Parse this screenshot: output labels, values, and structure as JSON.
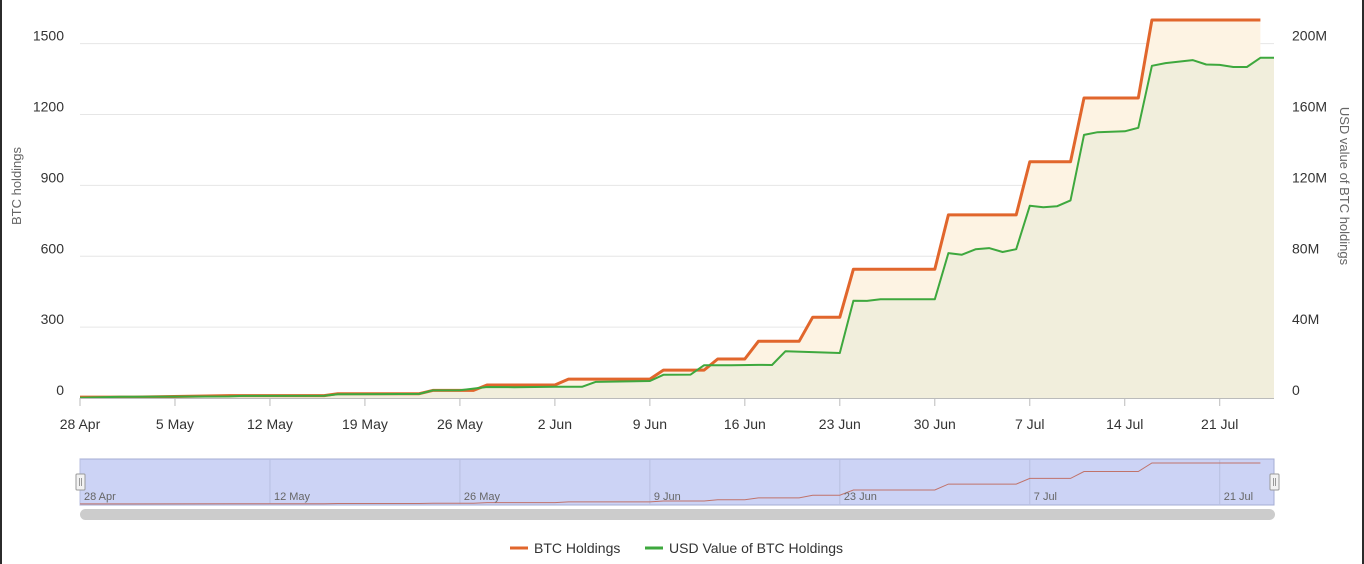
{
  "chart_data": {
    "type": "line",
    "series": [
      {
        "name": "BTC Holdings",
        "axis": "left",
        "color": "#e1662c",
        "fill": "#fdf3e3",
        "points": [
          [
            "2020-04-28",
            4
          ],
          [
            "2020-05-02",
            4
          ],
          [
            "2020-05-09",
            10
          ],
          [
            "2020-05-16",
            10
          ],
          [
            "2020-05-17",
            18
          ],
          [
            "2020-05-23",
            18
          ],
          [
            "2020-05-24",
            32
          ],
          [
            "2020-05-27",
            32
          ],
          [
            "2020-05-28",
            55
          ],
          [
            "2020-06-02",
            55
          ],
          [
            "2020-06-03",
            80
          ],
          [
            "2020-06-09",
            80
          ],
          [
            "2020-06-10",
            118
          ],
          [
            "2020-06-13",
            118
          ],
          [
            "2020-06-14",
            165
          ],
          [
            "2020-06-16",
            165
          ],
          [
            "2020-06-17",
            240
          ],
          [
            "2020-06-20",
            240
          ],
          [
            "2020-06-21",
            342
          ],
          [
            "2020-06-23",
            342
          ],
          [
            "2020-06-24",
            545
          ],
          [
            "2020-06-30",
            545
          ],
          [
            "2020-07-01",
            775
          ],
          [
            "2020-07-06",
            775
          ],
          [
            "2020-07-07",
            1000
          ],
          [
            "2020-07-10",
            1000
          ],
          [
            "2020-07-11",
            1270
          ],
          [
            "2020-07-15",
            1270
          ],
          [
            "2020-07-16",
            1600
          ],
          [
            "2020-07-24",
            1600
          ]
        ]
      },
      {
        "name": "USD Value of BTC Holdings",
        "axis": "right",
        "color": "#3ea83e",
        "fill": "#f1eedc",
        "points": [
          [
            "2020-04-28",
            100000
          ],
          [
            "2020-05-01",
            700000
          ],
          [
            "2020-05-02",
            700000
          ],
          [
            "2020-05-09",
            900000
          ],
          [
            "2020-05-10",
            1200000
          ],
          [
            "2020-05-16",
            1300000
          ],
          [
            "2020-05-17",
            2100000
          ],
          [
            "2020-05-23",
            2300000
          ],
          [
            "2020-05-24",
            4300000
          ],
          [
            "2020-05-26",
            4400000
          ],
          [
            "2020-05-28",
            6200000
          ],
          [
            "2020-05-30",
            6100000
          ],
          [
            "2020-06-02",
            6300000
          ],
          [
            "2020-06-04",
            6300000
          ],
          [
            "2020-06-05",
            9100000
          ],
          [
            "2020-06-09",
            9600000
          ],
          [
            "2020-06-10",
            13100000
          ],
          [
            "2020-06-12",
            13200000
          ],
          [
            "2020-06-13",
            18500000
          ],
          [
            "2020-06-15",
            18500000
          ],
          [
            "2020-06-17",
            18700000
          ],
          [
            "2020-06-18",
            18600000
          ],
          [
            "2020-06-19",
            26400000
          ],
          [
            "2020-06-23",
            25400000
          ],
          [
            "2020-06-24",
            54900000
          ],
          [
            "2020-06-25",
            54800000
          ],
          [
            "2020-06-26",
            55700000
          ],
          [
            "2020-06-30",
            55700000
          ],
          [
            "2020-07-01",
            81800000
          ],
          [
            "2020-07-02",
            80900000
          ],
          [
            "2020-07-03",
            83900000
          ],
          [
            "2020-07-04",
            84600000
          ],
          [
            "2020-07-05",
            82400000
          ],
          [
            "2020-07-06",
            84000000
          ],
          [
            "2020-07-07",
            108500000
          ],
          [
            "2020-07-08",
            107700000
          ],
          [
            "2020-07-09",
            108200000
          ],
          [
            "2020-07-10",
            111500000
          ],
          [
            "2020-07-11",
            148500000
          ],
          [
            "2020-07-12",
            150000000
          ],
          [
            "2020-07-14",
            150500000
          ],
          [
            "2020-07-15",
            152500000
          ],
          [
            "2020-07-16",
            187500000
          ],
          [
            "2020-07-17",
            189000000
          ],
          [
            "2020-07-19",
            190700000
          ],
          [
            "2020-07-20",
            188200000
          ],
          [
            "2020-07-21",
            188000000
          ],
          [
            "2020-07-22",
            186800000
          ],
          [
            "2020-07-23",
            186800000
          ],
          [
            "2020-07-24",
            192000000
          ],
          [
            "2020-07-25",
            192000000
          ]
        ]
      }
    ],
    "x_range": [
      "2020-04-28",
      "2020-07-25"
    ],
    "x_ticks": [
      {
        "date": "2020-04-28",
        "label": "28 Apr"
      },
      {
        "date": "2020-05-05",
        "label": "5 May"
      },
      {
        "date": "2020-05-12",
        "label": "12 May"
      },
      {
        "date": "2020-05-19",
        "label": "19 May"
      },
      {
        "date": "2020-05-26",
        "label": "26 May"
      },
      {
        "date": "2020-06-02",
        "label": "2 Jun"
      },
      {
        "date": "2020-06-09",
        "label": "9 Jun"
      },
      {
        "date": "2020-06-16",
        "label": "16 Jun"
      },
      {
        "date": "2020-06-23",
        "label": "23 Jun"
      },
      {
        "date": "2020-06-30",
        "label": "30 Jun"
      },
      {
        "date": "2020-07-07",
        "label": "7 Jul"
      },
      {
        "date": "2020-07-14",
        "label": "14 Jul"
      },
      {
        "date": "2020-07-21",
        "label": "21 Jul"
      }
    ],
    "y_left": {
      "label": "BTC holdings",
      "range": [
        0,
        1600
      ],
      "ticks": [
        {
          "value": 0,
          "label": "0"
        },
        {
          "value": 300,
          "label": "300"
        },
        {
          "value": 600,
          "label": "600"
        },
        {
          "value": 900,
          "label": "900"
        },
        {
          "value": 1200,
          "label": "1200"
        },
        {
          "value": 1500,
          "label": "1500"
        }
      ]
    },
    "y_right": {
      "label": "USD value of BTC holdings",
      "range": [
        0,
        213333333
      ],
      "ticks": [
        {
          "value": 0,
          "label": "0"
        },
        {
          "value": 40000000,
          "label": "40M"
        },
        {
          "value": 80000000,
          "label": "80M"
        },
        {
          "value": 120000000,
          "label": "120M"
        },
        {
          "value": 160000000,
          "label": "160M"
        },
        {
          "value": 200000000,
          "label": "200M"
        }
      ]
    },
    "grid": true,
    "legend_position": "bottom-center",
    "navigator": {
      "series": "BTC Holdings",
      "line_color": "#c0736b",
      "window_color": "#ccd3f5",
      "tick_labels": [
        {
          "date": "2020-04-28",
          "label": "28 Apr"
        },
        {
          "date": "2020-05-12",
          "label": "12 May"
        },
        {
          "date": "2020-05-26",
          "label": "26 May"
        },
        {
          "date": "2020-06-09",
          "label": "9 Jun"
        },
        {
          "date": "2020-06-23",
          "label": "23 Jun"
        },
        {
          "date": "2020-07-07",
          "label": "7 Jul"
        },
        {
          "date": "2020-07-21",
          "label": "21 Jul"
        }
      ]
    }
  }
}
